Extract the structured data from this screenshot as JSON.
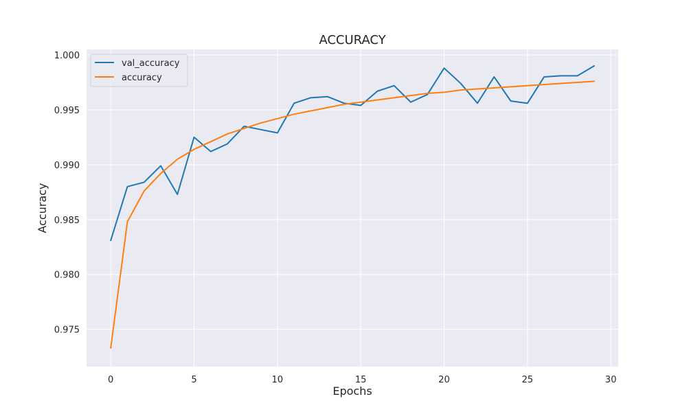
{
  "chart_data": {
    "type": "line",
    "title": "ACCURACY",
    "xlabel": "Epochs",
    "ylabel": "Accuracy",
    "xlim": [
      -1.45,
      30.45
    ],
    "ylim": [
      0.9716,
      1.0005
    ],
    "xticks": [
      0,
      5,
      10,
      15,
      20,
      25,
      30
    ],
    "yticks": [
      0.975,
      0.98,
      0.985,
      0.99,
      0.995,
      1.0
    ],
    "xtick_labels": [
      "0",
      "5",
      "10",
      "15",
      "20",
      "25",
      "30"
    ],
    "ytick_labels": [
      "0.975",
      "0.980",
      "0.985",
      "0.990",
      "0.995",
      "1.000"
    ],
    "grid": true,
    "legend_position": "top-left",
    "x": [
      0,
      1,
      2,
      3,
      4,
      5,
      6,
      7,
      8,
      9,
      10,
      11,
      12,
      13,
      14,
      15,
      16,
      17,
      18,
      19,
      20,
      21,
      22,
      23,
      24,
      25,
      26,
      27,
      28,
      29
    ],
    "series": [
      {
        "name": "val_accuracy",
        "color": "#1f77b4",
        "values": [
          0.9831,
          0.988,
          0.9884,
          0.9899,
          0.9873,
          0.9925,
          0.9912,
          0.9919,
          0.9935,
          0.9932,
          0.9929,
          0.9956,
          0.9961,
          0.9962,
          0.9956,
          0.9954,
          0.9967,
          0.9972,
          0.9957,
          0.9964,
          0.9988,
          0.9974,
          0.9956,
          0.998,
          0.9958,
          0.9956,
          0.998,
          0.9981,
          0.9981,
          0.999
        ]
      },
      {
        "name": "accuracy",
        "color": "#ff7f0e",
        "values": [
          0.9733,
          0.9848,
          0.9876,
          0.9892,
          0.9905,
          0.9914,
          0.9921,
          0.9928,
          0.9933,
          0.9938,
          0.9942,
          0.9946,
          0.9949,
          0.9952,
          0.9955,
          0.9957,
          0.9959,
          0.9961,
          0.9963,
          0.9965,
          0.9966,
          0.9968,
          0.9969,
          0.997,
          0.9971,
          0.9972,
          0.9973,
          0.9974,
          0.9975,
          0.9976
        ]
      }
    ]
  },
  "colors": {
    "plot_background": "#eaeaf2",
    "grid": "#ffffff",
    "text": "#262626"
  }
}
